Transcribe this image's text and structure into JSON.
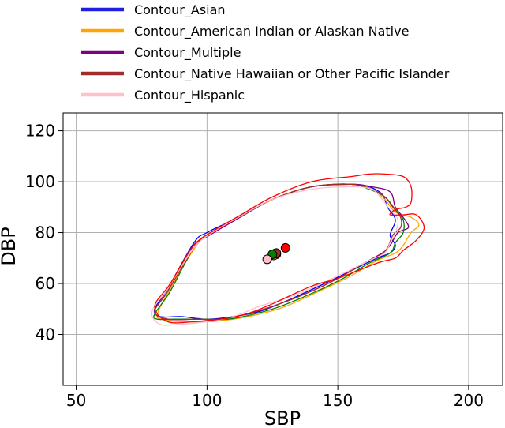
{
  "chart_data": {
    "type": "scatter",
    "xlabel": "SBP",
    "ylabel": "DBP",
    "xlim": [
      45,
      213
    ],
    "ylim": [
      20,
      127
    ],
    "x_ticks": [
      50,
      100,
      150,
      200
    ],
    "x_tick_labels": [
      "50",
      "100",
      "150",
      "200"
    ],
    "y_ticks": [
      40,
      60,
      80,
      100,
      120
    ],
    "y_tick_labels": [
      "40",
      "60",
      "80",
      "100",
      "120"
    ],
    "grid": true,
    "legend_placement": "top, above plot",
    "legend": [
      {
        "label": "Contour_Asian",
        "color": "#1f1fe0"
      },
      {
        "label": "Contour_American Indian or Alaskan Native",
        "color": "#ffa500"
      },
      {
        "label": "Contour_Multiple",
        "color": "#800080"
      },
      {
        "label": "Contour_Native Hawaiian or Other Pacific Islander",
        "color": "#a52a2a"
      },
      {
        "label": "Contour_Hispanic",
        "color": "#ffc0cb"
      }
    ],
    "series": [
      {
        "color": "#0000ff",
        "points": [
          [
            80,
            50
          ],
          [
            85,
            58
          ],
          [
            95,
            76
          ],
          [
            100,
            80
          ],
          [
            110,
            85
          ],
          [
            125,
            93
          ],
          [
            140,
            98
          ],
          [
            155,
            99
          ],
          [
            162,
            98
          ],
          [
            167,
            95
          ],
          [
            169,
            90
          ],
          [
            172,
            85
          ],
          [
            170,
            79
          ],
          [
            172,
            75
          ],
          [
            170,
            72
          ],
          [
            165,
            70
          ],
          [
            155,
            65
          ],
          [
            145,
            60
          ],
          [
            130,
            53
          ],
          [
            120,
            49
          ],
          [
            110,
            47
          ],
          [
            100,
            46
          ],
          [
            90,
            47
          ],
          [
            82,
            47
          ]
        ]
      },
      {
        "color": "#ffa500",
        "points": [
          [
            81,
            48
          ],
          [
            86,
            58
          ],
          [
            96,
            75
          ],
          [
            102,
            80
          ],
          [
            112,
            86
          ],
          [
            125,
            93
          ],
          [
            140,
            98
          ],
          [
            155,
            99
          ],
          [
            163,
            97
          ],
          [
            168,
            93
          ],
          [
            172,
            88
          ],
          [
            178,
            86
          ],
          [
            181,
            83
          ],
          [
            178,
            80
          ],
          [
            175,
            75
          ],
          [
            172,
            72
          ],
          [
            165,
            69
          ],
          [
            155,
            63
          ],
          [
            145,
            58
          ],
          [
            130,
            51
          ],
          [
            120,
            48
          ],
          [
            110,
            46
          ],
          [
            100,
            45
          ],
          [
            90,
            45
          ],
          [
            83,
            46
          ]
        ]
      },
      {
        "color": "#800080",
        "points": [
          [
            80,
            49
          ],
          [
            85,
            57
          ],
          [
            94,
            74
          ],
          [
            101,
            79
          ],
          [
            111,
            85
          ],
          [
            125,
            93
          ],
          [
            140,
            98
          ],
          [
            155,
            99
          ],
          [
            163,
            98
          ],
          [
            170,
            96
          ],
          [
            172,
            90
          ],
          [
            175,
            86
          ],
          [
            177,
            82
          ],
          [
            173,
            80
          ],
          [
            170,
            75
          ],
          [
            167,
            72
          ],
          [
            160,
            68
          ],
          [
            150,
            62
          ],
          [
            140,
            57
          ],
          [
            125,
            51
          ],
          [
            115,
            48
          ],
          [
            105,
            46
          ],
          [
            95,
            46
          ],
          [
            85,
            46
          ]
        ]
      },
      {
        "color": "#008000",
        "points": [
          [
            80,
            48
          ],
          [
            86,
            57
          ],
          [
            95,
            74
          ],
          [
            102,
            80
          ],
          [
            112,
            86
          ],
          [
            125,
            93
          ],
          [
            140,
            98
          ],
          [
            155,
            99
          ],
          [
            162,
            97
          ],
          [
            168,
            94
          ],
          [
            172,
            89
          ],
          [
            175,
            85
          ],
          [
            175,
            80
          ],
          [
            172,
            76
          ],
          [
            170,
            72
          ],
          [
            162,
            68
          ],
          [
            152,
            62
          ],
          [
            142,
            57
          ],
          [
            128,
            51
          ],
          [
            118,
            48
          ],
          [
            108,
            46
          ],
          [
            98,
            46
          ],
          [
            88,
            46
          ],
          [
            81,
            46
          ]
        ]
      },
      {
        "color": "#a52a2a",
        "points": [
          [
            80,
            49
          ],
          [
            85,
            57
          ],
          [
            95,
            74
          ],
          [
            102,
            80
          ],
          [
            112,
            86
          ],
          [
            125,
            93
          ],
          [
            140,
            98
          ],
          [
            155,
            99
          ],
          [
            163,
            97
          ],
          [
            168,
            94
          ],
          [
            171,
            90
          ],
          [
            174,
            86
          ],
          [
            174,
            82
          ],
          [
            171,
            79
          ],
          [
            169,
            74
          ],
          [
            166,
            71
          ],
          [
            160,
            68
          ],
          [
            150,
            62
          ],
          [
            140,
            57
          ],
          [
            125,
            51
          ],
          [
            115,
            48
          ],
          [
            105,
            46
          ],
          [
            95,
            46
          ],
          [
            85,
            46
          ]
        ]
      },
      {
        "color": "#ffc0cb",
        "points": [
          [
            79,
            49
          ],
          [
            85,
            58
          ],
          [
            95,
            74
          ],
          [
            102,
            80
          ],
          [
            112,
            86
          ],
          [
            125,
            93
          ],
          [
            140,
            97
          ],
          [
            155,
            98
          ],
          [
            163,
            97
          ],
          [
            167,
            93
          ],
          [
            170,
            89
          ],
          [
            173,
            85
          ],
          [
            172,
            80
          ],
          [
            170,
            76
          ],
          [
            168,
            72
          ],
          [
            162,
            69
          ],
          [
            150,
            63
          ],
          [
            135,
            56
          ],
          [
            120,
            51
          ],
          [
            110,
            47
          ],
          [
            100,
            45
          ],
          [
            90,
            44
          ],
          [
            82,
            44
          ]
        ]
      },
      {
        "color": "#ff0000",
        "points": [
          [
            80,
            51
          ],
          [
            86,
            60
          ],
          [
            95,
            75
          ],
          [
            103,
            81
          ],
          [
            113,
            87
          ],
          [
            125,
            94
          ],
          [
            140,
            100
          ],
          [
            155,
            102
          ],
          [
            162,
            103
          ],
          [
            168,
            103
          ],
          [
            175,
            102
          ],
          [
            178,
            98
          ],
          [
            178,
            92
          ],
          [
            176,
            90
          ],
          [
            172,
            89
          ],
          [
            170,
            87
          ],
          [
            175,
            87
          ],
          [
            180,
            87
          ],
          [
            183,
            82
          ],
          [
            180,
            77
          ],
          [
            175,
            73
          ],
          [
            172,
            70
          ],
          [
            165,
            68
          ],
          [
            150,
            62
          ],
          [
            140,
            59
          ],
          [
            125,
            52
          ],
          [
            115,
            48
          ],
          [
            105,
            46
          ],
          [
            95,
            45
          ],
          [
            85,
            45
          ]
        ]
      }
    ],
    "centroids": [
      {
        "x": 126.5,
        "y": 71.5,
        "color": "#1f1fe0"
      },
      {
        "x": 125.5,
        "y": 71.0,
        "color": "#ffa500"
      },
      {
        "x": 126.0,
        "y": 71.8,
        "color": "#800080"
      },
      {
        "x": 126.5,
        "y": 72.0,
        "color": "#a52a2a"
      },
      {
        "x": 125.0,
        "y": 71.5,
        "color": "#008000"
      },
      {
        "x": 123.0,
        "y": 69.5,
        "color": "#ffc0cb"
      },
      {
        "x": 130.0,
        "y": 74.0,
        "color": "#ff0000"
      }
    ]
  }
}
